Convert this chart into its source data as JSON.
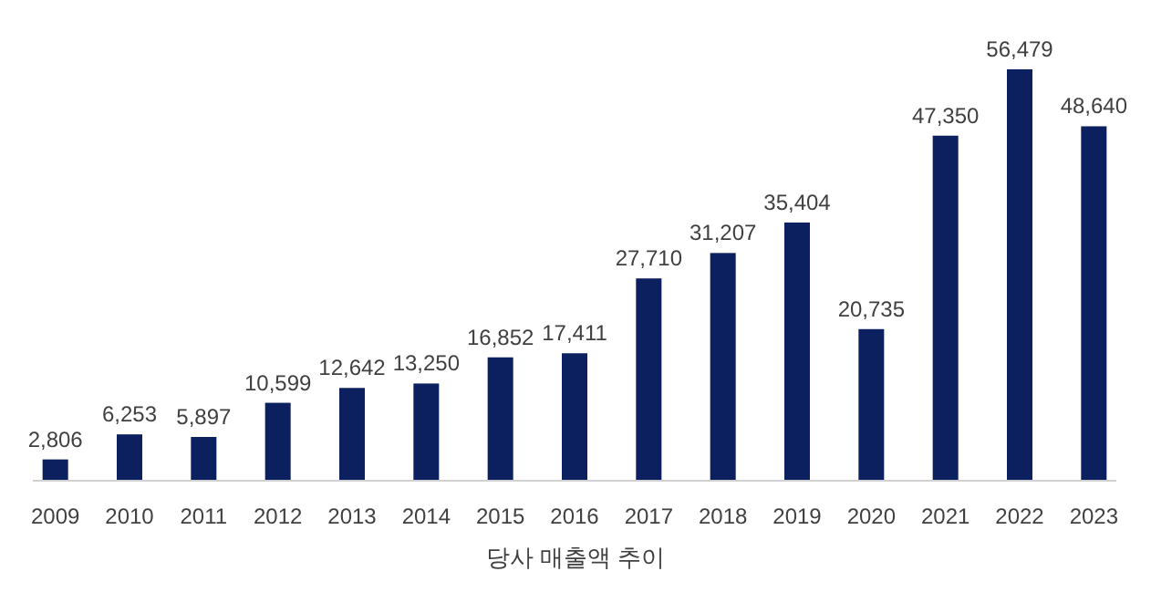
{
  "chart_data": {
    "type": "bar",
    "title": "당사 매출액 추이",
    "categories": [
      "2009",
      "2010",
      "2011",
      "2012",
      "2013",
      "2014",
      "2015",
      "2016",
      "2017",
      "2018",
      "2019",
      "2020",
      "2021",
      "2022",
      "2023"
    ],
    "values": [
      2806,
      6253,
      5897,
      10599,
      12642,
      13250,
      16852,
      17411,
      27710,
      31207,
      35404,
      20735,
      47350,
      56479,
      48640
    ],
    "value_labels": [
      "2,806",
      "6,253",
      "5,897",
      "10,599",
      "12,642",
      "13,250",
      "16,852",
      "17,411",
      "27,710",
      "31,207",
      "35,404",
      "20,735",
      "47,350",
      "56,479",
      "48,640"
    ],
    "color": "#0c1f5e"
  }
}
